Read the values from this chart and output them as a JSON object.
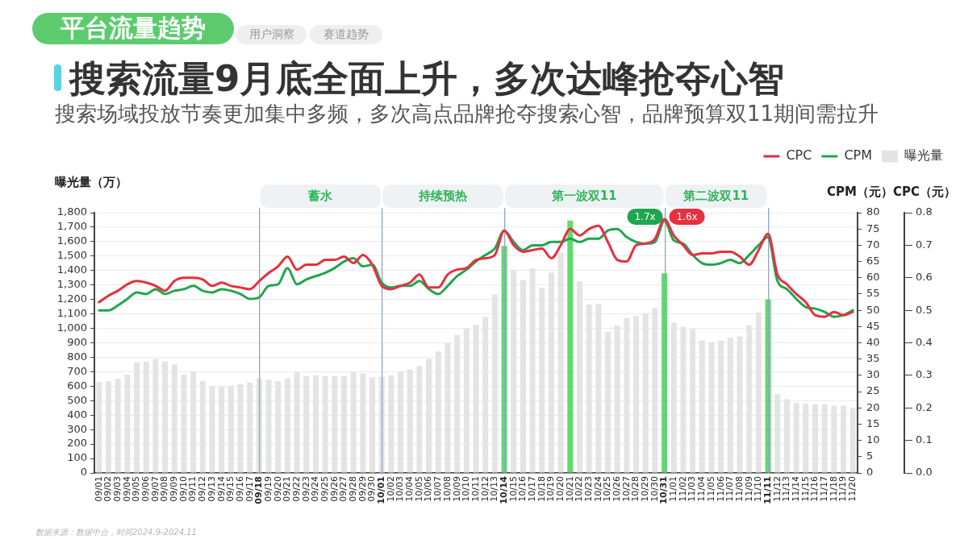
{
  "chart_data": {
    "type": "bar",
    "title": "搜索流量9月底全面上升，多次达峰抢夺心智",
    "subtitle": "搜索场域投放节奏更加集中多频，多次高点品牌抢夺搜索心智，品牌预算双11期间需拉升",
    "ylabel": "曝光量（万）",
    "y2label": "CPM（元）",
    "y3label": "CPC（元）",
    "annotations": [
      "平台流量趋势",
      "用户洞察",
      "赛道趋势",
      "蓄水",
      "持续预热",
      "第一波双11",
      "第二波双11",
      "1.7x",
      "1.6x",
      "数据来源：数据中台，时间2024.9-2024.11"
    ],
    "categories": [
      "09/01",
      "09/02",
      "09/03",
      "09/04",
      "09/05",
      "09/06",
      "09/07",
      "09/08",
      "09/09",
      "09/10",
      "09/11",
      "09/12",
      "09/13",
      "09/14",
      "09/15",
      "09/16",
      "09/17",
      "09/18",
      "09/19",
      "09/20",
      "09/21",
      "09/22",
      "09/23",
      "09/24",
      "09/25",
      "09/26",
      "09/27",
      "09/28",
      "09/29",
      "09/30",
      "10/01",
      "10/02",
      "10/03",
      "10/04",
      "10/05",
      "10/06",
      "10/07",
      "10/08",
      "10/09",
      "10/10",
      "10/11",
      "10/12",
      "10/13",
      "10/14",
      "10/15",
      "10/16",
      "10/17",
      "10/18",
      "10/19",
      "10/20",
      "10/21",
      "10/22",
      "10/23",
      "10/24",
      "10/25",
      "10/26",
      "10/27",
      "10/28",
      "10/29",
      "10/30",
      "10/31",
      "11/01",
      "11/02",
      "11/03",
      "11/04",
      "11/05",
      "11/06",
      "11/07",
      "11/08",
      "11/09",
      "11/10",
      "11/11",
      "11/12",
      "11/13",
      "11/14",
      "11/15",
      "11/16",
      "11/17",
      "11/18",
      "11/19",
      "11/20"
    ],
    "series": [
      {
        "name": "CPC",
        "type": "line",
        "axis": "y3",
        "color": "#e5303f",
        "values": [
          0.525,
          0.545,
          0.56,
          0.58,
          0.59,
          0.585,
          0.575,
          0.56,
          0.59,
          0.6,
          0.6,
          0.595,
          0.575,
          0.585,
          0.575,
          0.57,
          0.565,
          0.59,
          0.615,
          0.635,
          0.665,
          0.625,
          0.64,
          0.64,
          0.655,
          0.655,
          0.665,
          0.645,
          0.67,
          0.64,
          0.575,
          0.565,
          0.575,
          0.585,
          0.61,
          0.57,
          0.57,
          0.61,
          0.625,
          0.63,
          0.655,
          0.66,
          0.67,
          0.745,
          0.7,
          0.68,
          0.685,
          0.69,
          0.66,
          0.7,
          0.75,
          0.73,
          0.75,
          0.76,
          0.71,
          0.655,
          0.65,
          0.7,
          0.705,
          0.72,
          0.78,
          0.73,
          0.7,
          0.67,
          0.675,
          0.675,
          0.68,
          0.68,
          0.665,
          0.64,
          0.685,
          0.735,
          0.61,
          0.58,
          0.55,
          0.525,
          0.485,
          0.48,
          0.495,
          0.485,
          0.495
        ]
      },
      {
        "name": "CPM",
        "type": "line",
        "axis": "y2",
        "color": "#1fa64f",
        "values": [
          50,
          50,
          51.5,
          53.5,
          55.5,
          55,
          56.5,
          55,
          56,
          56.5,
          57.5,
          56,
          55.5,
          56.5,
          56,
          55,
          53.5,
          54,
          57.5,
          58,
          63,
          58,
          59.5,
          60.5,
          61.5,
          63,
          65,
          66,
          63.5,
          64,
          58.5,
          57,
          57.5,
          57.5,
          59,
          56.5,
          55,
          57.5,
          60.5,
          62.5,
          65,
          67,
          69,
          74.5,
          71,
          68.5,
          70,
          70,
          71,
          71,
          72,
          71,
          72,
          72,
          74.5,
          75,
          72.5,
          71,
          70.5,
          71,
          77.5,
          71.5,
          70.5,
          67,
          64.5,
          64,
          64.5,
          65.5,
          64.5,
          67,
          70,
          72.5,
          59,
          56.5,
          53.5,
          51,
          50.5,
          49.5,
          48,
          48.5,
          50
        ]
      },
      {
        "name": "曝光量",
        "type": "bar",
        "color": "#e4e4e4",
        "colors": [
          "#e4e4e4",
          "#e4e4e4",
          "#e4e4e4",
          "#e4e4e4",
          "#e4e4e4",
          "#e4e4e4",
          "#e4e4e4",
          "#e4e4e4",
          "#e4e4e4",
          "#e4e4e4",
          "#e4e4e4",
          "#e4e4e4",
          "#e4e4e4",
          "#e4e4e4",
          "#e4e4e4",
          "#e4e4e4",
          "#e4e4e4",
          "#e4e4e4",
          "#e4e4e4",
          "#e4e4e4",
          "#e4e4e4",
          "#e4e4e4",
          "#e4e4e4",
          "#e4e4e4",
          "#e4e4e4",
          "#e4e4e4",
          "#e4e4e4",
          "#e4e4e4",
          "#e4e4e4",
          "#e4e4e4",
          "#e4e4e4",
          "#e4e4e4",
          "#e4e4e4",
          "#e4e4e4",
          "#e4e4e4",
          "#e4e4e4",
          "#e4e4e4",
          "#e4e4e4",
          "#e4e4e4",
          "#e4e4e4",
          "#e4e4e4",
          "#e4e4e4",
          "#e4e4e4",
          "#5ddc6c",
          "#e4e4e4",
          "#e4e4e4",
          "#e4e4e4",
          "#e4e4e4",
          "#e4e4e4",
          "#e4e4e4",
          "#5ddc6c",
          "#e4e4e4",
          "#e4e4e4",
          "#e4e4e4",
          "#e4e4e4",
          "#e4e4e4",
          "#e4e4e4",
          "#e4e4e4",
          "#e4e4e4",
          "#e4e4e4",
          "#5ddc6c",
          "#e4e4e4",
          "#e4e4e4",
          "#e4e4e4",
          "#e4e4e4",
          "#e4e4e4",
          "#e4e4e4",
          "#e4e4e4",
          "#e4e4e4",
          "#e4e4e4",
          "#e4e4e4",
          "#5ddc6c",
          "#e4e4e4",
          "#e4e4e4",
          "#e4e4e4",
          "#e4e4e4",
          "#e4e4e4",
          "#e4e4e4",
          "#e4e4e4",
          "#e4e4e4",
          "#e4e4e4"
        ],
        "values": [
          630,
          635,
          650,
          680,
          765,
          770,
          790,
          770,
          750,
          680,
          700,
          635,
          600,
          595,
          600,
          615,
          625,
          655,
          645,
          635,
          655,
          695,
          670,
          675,
          670,
          670,
          670,
          700,
          690,
          660,
          665,
          675,
          700,
          715,
          740,
          790,
          840,
          900,
          955,
          1000,
          1025,
          1080,
          1235,
          1570,
          1405,
          1335,
          1415,
          1280,
          1385,
          1525,
          1745,
          1325,
          1165,
          1170,
          975,
          1020,
          1070,
          1085,
          1105,
          1140,
          1380,
          1040,
          1010,
          995,
          915,
          905,
          915,
          935,
          945,
          1020,
          1110,
          1200,
          545,
          510,
          485,
          480,
          475,
          475,
          465,
          465,
          450
        ]
      }
    ],
    "ylim": [
      0,
      1800
    ],
    "yticks": [
      0,
      100,
      200,
      300,
      400,
      500,
      600,
      700,
      800,
      900,
      {
        "value": 1000,
        "label": "1,000"
      },
      {
        "value": 1100,
        "label": "1,100"
      },
      {
        "value": 1200,
        "label": "1,200"
      },
      {
        "value": 1300,
        "label": "1,300"
      },
      {
        "value": 1400,
        "label": "1,400"
      },
      {
        "value": 1500,
        "label": "1,500"
      },
      {
        "value": 1600,
        "label": "1,600"
      },
      {
        "value": 1700,
        "label": "1,700"
      },
      {
        "value": 1800,
        "label": "1,800"
      }
    ],
    "y2lim": [
      0,
      80
    ],
    "y2ticks": [
      0,
      5,
      10,
      15,
      20,
      25,
      30,
      35,
      40,
      45,
      50,
      55,
      60,
      65,
      70,
      75,
      80
    ],
    "y3lim": [
      0,
      0.8
    ],
    "y3ticks": [
      {
        "value": 0,
        "label": "0.0"
      },
      0.1,
      0.2,
      0.3,
      0.4,
      0.5,
      0.6,
      0.7,
      0.8
    ],
    "ref_lines": [
      {
        "axis": "x",
        "value": "09/18",
        "color": "#8fa5c2"
      },
      {
        "axis": "x",
        "value": "10/01",
        "color": "#8fa5c2"
      },
      {
        "axis": "x",
        "value": "10/14",
        "color": "#8fa5c2"
      },
      {
        "axis": "x",
        "value": "10/31",
        "color": "#8fa5c2"
      },
      {
        "axis": "x",
        "value": "11/11",
        "color": "#8fa5c2"
      }
    ],
    "grid": "y",
    "legend": "top right"
  }
}
